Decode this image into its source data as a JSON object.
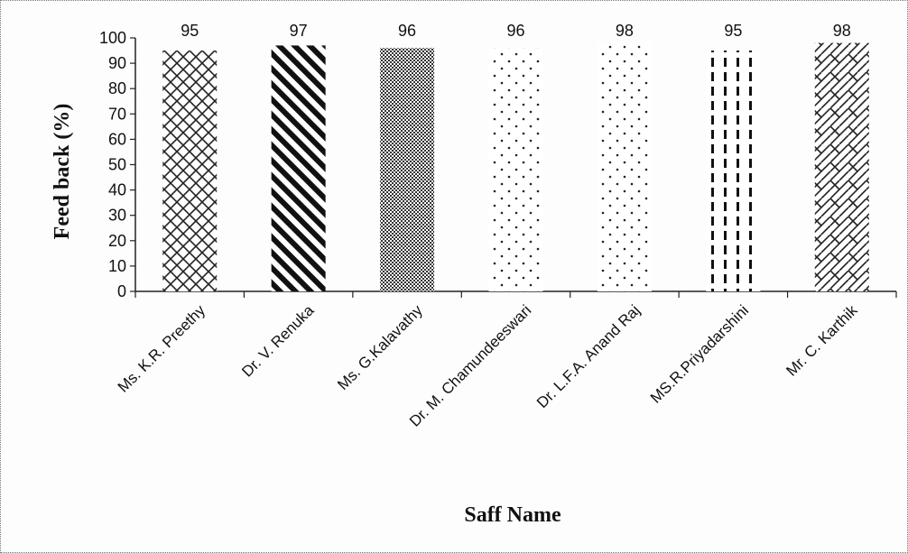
{
  "chart_data": {
    "type": "bar",
    "title": "",
    "xlabel": "Saff Name",
    "ylabel": "Feed back (%)",
    "ylim": [
      0,
      100
    ],
    "yticks": [
      0,
      10,
      20,
      30,
      40,
      50,
      60,
      70,
      80,
      90,
      100
    ],
    "categories": [
      "Ms. K.R. Preethy",
      "Dr. V. Renuka",
      "Ms. G.Kalavathy",
      "Dr. M. Chamundeeswari",
      "Dr. L.F.A. Anand Raj",
      "MS.R.Priyadarshini",
      "Mr. C. Karthik"
    ],
    "values": [
      95,
      97,
      96,
      96,
      98,
      95,
      98
    ],
    "data_labels": [
      "95",
      "97",
      "96",
      "96",
      "98",
      "95",
      "98"
    ],
    "patterns": [
      "crosshatch",
      "diagonal-stripes",
      "dense-checker",
      "sparse-dots",
      "sparse-dots",
      "vertical-dashes",
      "brick"
    ],
    "grid": false,
    "legend": "none"
  }
}
